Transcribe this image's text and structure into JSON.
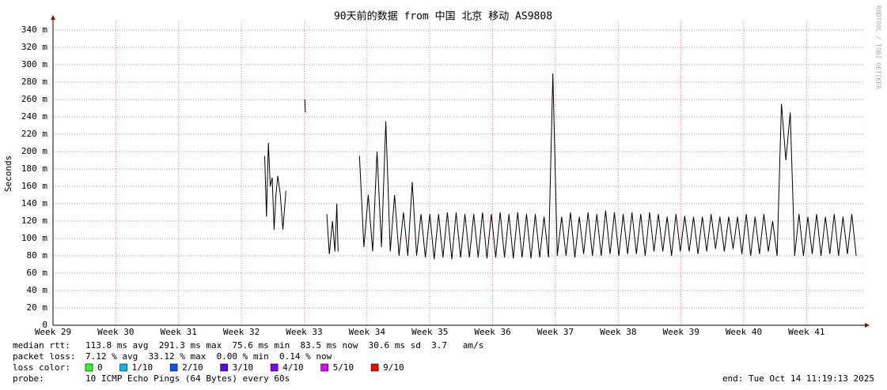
{
  "chart_data": {
    "type": "line",
    "title": "90天前的数据 from 中国 北京 移动 AS9808",
    "y_label": "Seconds",
    "watermark": "RRDTOOL / TOBI OETIKER",
    "xlim": [
      29,
      41.89
    ],
    "xticks": [
      {
        "value": 29,
        "label": "Week 29"
      },
      {
        "value": 30,
        "label": "Week 30"
      },
      {
        "value": 31,
        "label": "Week 31"
      },
      {
        "value": 32,
        "label": "Week 32"
      },
      {
        "value": 33,
        "label": "Week 33"
      },
      {
        "value": 34,
        "label": "Week 34"
      },
      {
        "value": 35,
        "label": "Week 35"
      },
      {
        "value": 36,
        "label": "Week 36"
      },
      {
        "value": 37,
        "label": "Week 37"
      },
      {
        "value": 38,
        "label": "Week 38"
      },
      {
        "value": 39,
        "label": "Week 39"
      },
      {
        "value": 40,
        "label": "Week 40"
      },
      {
        "value": 41,
        "label": "Week 41"
      }
    ],
    "ylim": [
      0,
      350
    ],
    "yticks": [
      0,
      {
        "value": 20,
        "label": "20 m"
      },
      {
        "value": 40,
        "label": "40 m"
      },
      {
        "value": 60,
        "label": "60 m"
      },
      {
        "value": 80,
        "label": "80 m"
      },
      {
        "value": 100,
        "label": "100 m"
      },
      {
        "value": 120,
        "label": "120 m"
      },
      {
        "value": 140,
        "label": "140 m"
      },
      {
        "value": 160,
        "label": "160 m"
      },
      {
        "value": 180,
        "label": "180 m"
      },
      {
        "value": 200,
        "label": "200 m"
      },
      {
        "value": 220,
        "label": "220 m"
      },
      {
        "value": 240,
        "label": "240 m"
      },
      {
        "value": 260,
        "label": "260 m"
      },
      {
        "value": 280,
        "label": "280 m"
      },
      {
        "value": 300,
        "label": "300 m"
      },
      {
        "value": 320,
        "label": "320 m"
      },
      {
        "value": 340,
        "label": "340 m"
      }
    ],
    "grid": true,
    "series": [
      {
        "color": "#000000",
        "x": [
          32.37,
          32.4,
          32.43,
          32.46,
          32.49,
          32.52,
          32.55,
          32.58,
          32.62,
          32.66,
          32.71,
          32.8,
          33.01,
          33.02,
          33.2,
          33.36,
          33.4,
          33.45,
          33.49,
          33.52,
          33.54,
          33.7,
          33.88,
          33.95,
          34.02,
          34.09,
          34.16,
          34.23,
          34.3,
          34.37,
          34.44,
          34.51,
          34.58,
          34.65,
          34.72,
          34.79,
          34.86,
          34.93,
          35.0,
          35.07,
          35.14,
          35.21,
          35.28,
          35.35,
          35.42,
          35.49,
          35.56,
          35.63,
          35.7,
          35.77,
          35.84,
          35.91,
          35.98,
          36.05,
          36.12,
          36.19,
          36.26,
          36.33,
          36.4,
          36.47,
          36.54,
          36.61,
          36.68,
          36.75,
          36.82,
          36.89,
          36.96,
          37.03,
          37.1,
          37.17,
          37.24,
          37.31,
          37.38,
          37.45,
          37.52,
          37.59,
          37.66,
          37.73,
          37.8,
          37.87,
          37.94,
          38.01,
          38.08,
          38.15,
          38.22,
          38.29,
          38.36,
          38.43,
          38.5,
          38.57,
          38.64,
          38.71,
          38.78,
          38.85,
          38.92,
          38.99,
          39.06,
          39.13,
          39.2,
          39.27,
          39.34,
          39.41,
          39.48,
          39.55,
          39.62,
          39.69,
          39.76,
          39.83,
          39.9,
          39.97,
          40.04,
          40.11,
          40.18,
          40.25,
          40.32,
          40.39,
          40.46,
          40.53,
          40.6,
          40.67,
          40.74,
          40.81,
          40.88,
          40.95,
          41.02,
          41.09,
          41.16,
          41.23,
          41.3,
          41.37,
          41.44,
          41.51,
          41.58,
          41.65,
          41.72,
          41.79
        ],
        "values": [
          195,
          125,
          210,
          160,
          170,
          110,
          150,
          172,
          150,
          110,
          155,
          null,
          260,
          245,
          null,
          128,
          82,
          120,
          85,
          140,
          85,
          null,
          195,
          90,
          150,
          85,
          200,
          90,
          235,
          85,
          150,
          80,
          130,
          80,
          165,
          80,
          128,
          78,
          128,
          76,
          128,
          78,
          130,
          76,
          130,
          78,
          128,
          78,
          128,
          78,
          130,
          77,
          128,
          78,
          130,
          78,
          128,
          77,
          130,
          78,
          128,
          77,
          128,
          78,
          125,
          78,
          290,
          80,
          125,
          80,
          130,
          78,
          125,
          82,
          130,
          80,
          128,
          80,
          132,
          82,
          130,
          80,
          128,
          82,
          130,
          82,
          128,
          80,
          130,
          85,
          128,
          85,
          125,
          80,
          128,
          85,
          126,
          85,
          125,
          82,
          125,
          85,
          128,
          88,
          125,
          85,
          125,
          88,
          125,
          82,
          128,
          80,
          125,
          82,
          128,
          85,
          120,
          80,
          255,
          190,
          245,
          80,
          128,
          80,
          125,
          82,
          128,
          80,
          125,
          82,
          128,
          80,
          125,
          82,
          128,
          80
        ]
      }
    ],
    "stats": {
      "median_rtt": {
        "label": "median rtt:",
        "text": "113.8 ms avg  291.3 ms max  75.6 ms min  83.5 ms now  30.6 ms sd  3.7   am/s"
      },
      "packet_loss": {
        "label": "packet loss:",
        "text": "7.12 % avg  33.12 % max  0.00 % min  0.14 % now"
      },
      "loss_color": {
        "label": "loss color:",
        "items": [
          {
            "label": "0",
            "color": "#26ff26"
          },
          {
            "label": "1/10",
            "color": "#00b8ff"
          },
          {
            "label": "2/10",
            "color": "#0059ff"
          },
          {
            "label": "3/10",
            "color": "#5e00ff"
          },
          {
            "label": "4/10",
            "color": "#7e00ff"
          },
          {
            "label": "5/10",
            "color": "#dd00ff"
          },
          {
            "label": "9/10",
            "color": "#ff0000"
          }
        ]
      },
      "probe": {
        "label": "probe:",
        "text": "10 ICMP Echo Pings (64 Bytes) every 60s"
      },
      "end": "end: Tue Oct 14 11:19:13 2025"
    }
  }
}
